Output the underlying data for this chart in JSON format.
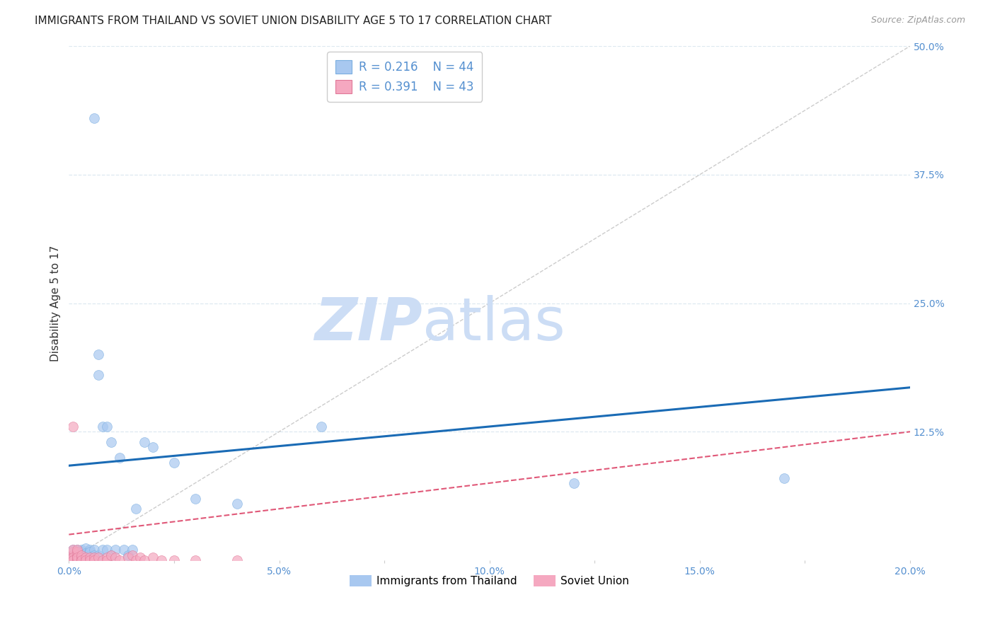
{
  "title": "IMMIGRANTS FROM THAILAND VS SOVIET UNION DISABILITY AGE 5 TO 17 CORRELATION CHART",
  "source": "Source: ZipAtlas.com",
  "ylabel": "Disability Age 5 to 17",
  "xlim": [
    0.0,
    0.2
  ],
  "ylim": [
    0.0,
    0.5
  ],
  "xticks": [
    0.0,
    0.025,
    0.05,
    0.075,
    0.1,
    0.125,
    0.15,
    0.175,
    0.2
  ],
  "xtick_labels": [
    "0.0%",
    "",
    "5.0%",
    "",
    "10.0%",
    "",
    "15.0%",
    "",
    "20.0%"
  ],
  "yticks_right": [
    0.0,
    0.125,
    0.25,
    0.375,
    0.5
  ],
  "ytick_right_labels": [
    "",
    "12.5%",
    "25.0%",
    "37.5%",
    "50.0%"
  ],
  "thailand_color": "#a8c8f0",
  "thailand_edge_color": "#7aaee0",
  "soviet_color": "#f5a8c0",
  "soviet_edge_color": "#e07898",
  "thailand_line_color": "#1a6bb5",
  "soviet_line_color": "#e05878",
  "diagonal_color": "#cccccc",
  "legend_label_thailand": "Immigrants from Thailand",
  "legend_label_soviet": "Soviet Union",
  "thailand_R": 0.216,
  "thailand_N": 44,
  "soviet_R": 0.391,
  "soviet_N": 43,
  "thailand_x": [
    0.001,
    0.001,
    0.001,
    0.002,
    0.002,
    0.002,
    0.002,
    0.003,
    0.003,
    0.003,
    0.003,
    0.004,
    0.004,
    0.004,
    0.004,
    0.005,
    0.005,
    0.005,
    0.006,
    0.006,
    0.006,
    0.007,
    0.007,
    0.007,
    0.008,
    0.008,
    0.009,
    0.009,
    0.01,
    0.01,
    0.011,
    0.012,
    0.013,
    0.014,
    0.015,
    0.016,
    0.018,
    0.02,
    0.025,
    0.03,
    0.04,
    0.06,
    0.12,
    0.17
  ],
  "thailand_y": [
    0.005,
    0.01,
    0.0,
    0.008,
    0.005,
    0.01,
    0.003,
    0.005,
    0.01,
    0.008,
    0.0,
    0.012,
    0.007,
    0.005,
    0.003,
    0.01,
    0.005,
    0.008,
    0.43,
    0.01,
    0.005,
    0.2,
    0.18,
    0.005,
    0.13,
    0.01,
    0.13,
    0.01,
    0.115,
    0.005,
    0.01,
    0.1,
    0.01,
    0.005,
    0.01,
    0.05,
    0.115,
    0.11,
    0.095,
    0.06,
    0.055,
    0.13,
    0.075,
    0.08
  ],
  "soviet_x": [
    0.001,
    0.001,
    0.001,
    0.001,
    0.001,
    0.001,
    0.001,
    0.001,
    0.001,
    0.002,
    0.002,
    0.002,
    0.002,
    0.002,
    0.002,
    0.002,
    0.003,
    0.003,
    0.003,
    0.003,
    0.004,
    0.004,
    0.005,
    0.005,
    0.006,
    0.006,
    0.007,
    0.008,
    0.009,
    0.009,
    0.01,
    0.011,
    0.012,
    0.014,
    0.015,
    0.016,
    0.017,
    0.018,
    0.02,
    0.022,
    0.025,
    0.03,
    0.04
  ],
  "soviet_y": [
    0.0,
    0.003,
    0.005,
    0.008,
    0.01,
    0.0,
    0.003,
    0.13,
    0.0,
    0.0,
    0.003,
    0.005,
    0.008,
    0.01,
    0.0,
    0.003,
    0.0,
    0.003,
    0.005,
    0.0,
    0.003,
    0.0,
    0.003,
    0.0,
    0.003,
    0.0,
    0.003,
    0.0,
    0.003,
    0.0,
    0.005,
    0.003,
    0.0,
    0.003,
    0.005,
    0.0,
    0.003,
    0.0,
    0.003,
    0.0,
    0.0,
    0.0,
    0.0
  ],
  "watermark_zip": "ZIP",
  "watermark_atlas": "atlas",
  "watermark_color": "#ccddf5",
  "grid_color": "#dde8f0",
  "background_color": "#ffffff",
  "title_fontsize": 11,
  "axis_label_fontsize": 11,
  "tick_fontsize": 10,
  "legend_fontsize": 12,
  "marker_size": 100,
  "marker_alpha": 0.7,
  "th_line_intercept": 0.092,
  "th_line_slope": 0.38,
  "sv_line_intercept": 0.025,
  "sv_line_slope": 0.5
}
